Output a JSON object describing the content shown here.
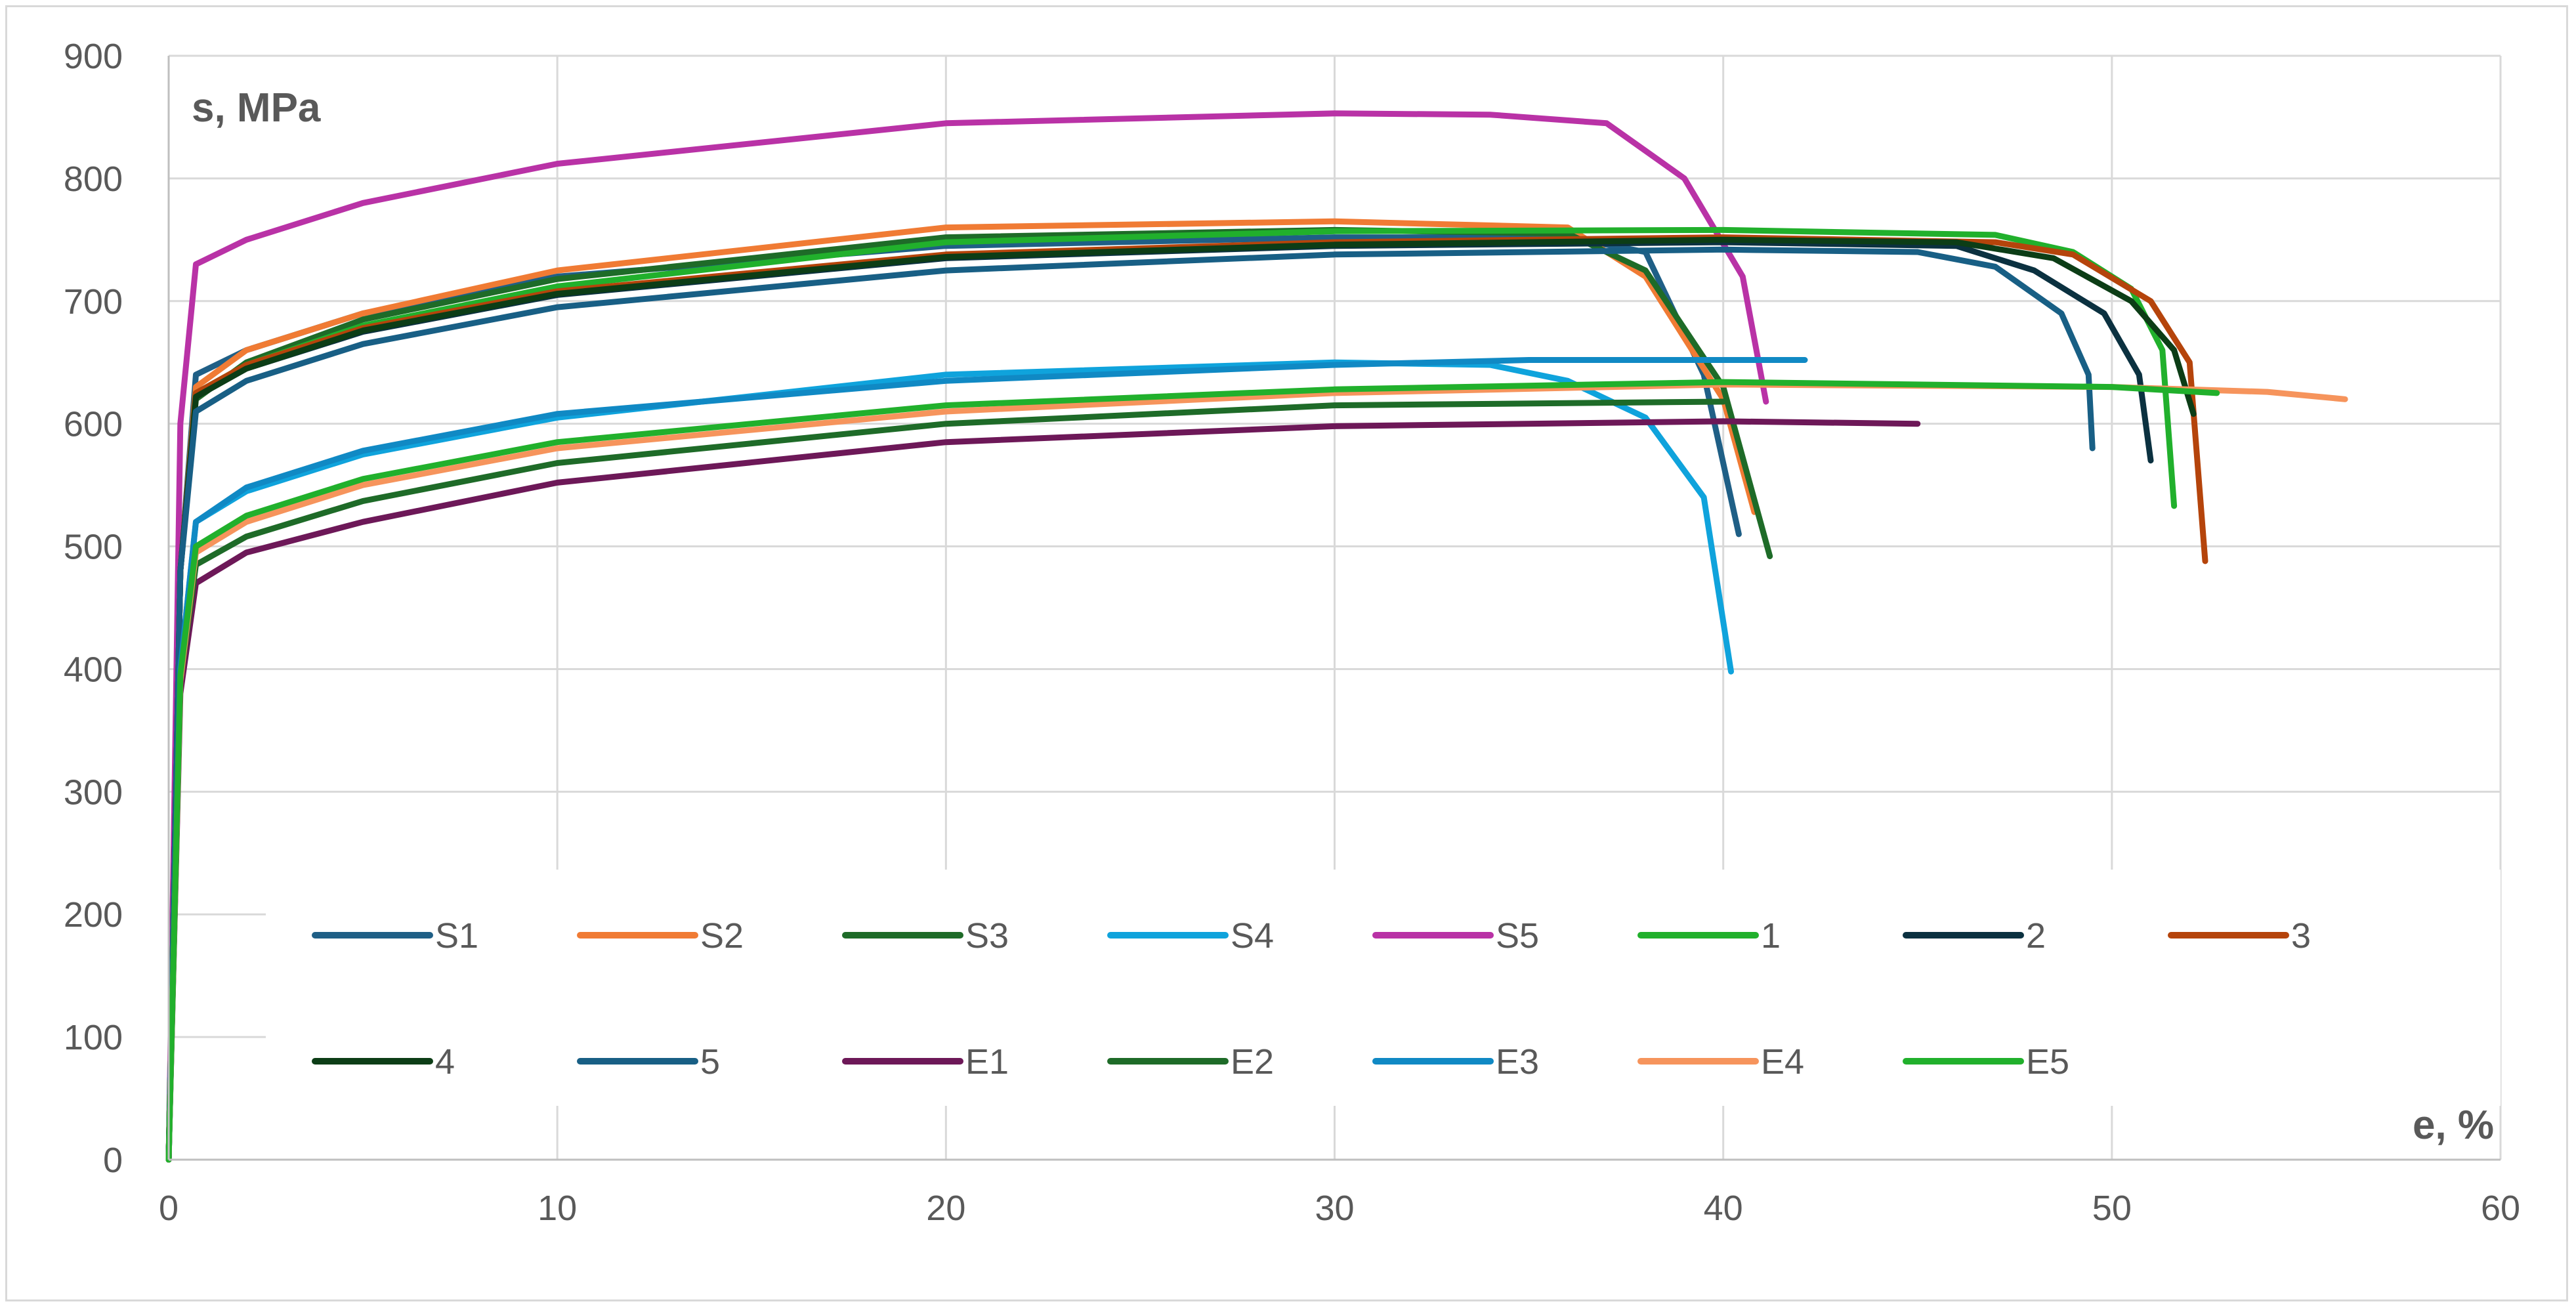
{
  "chart_data": {
    "type": "line",
    "ylabel": "s, MPa",
    "xlabel": "e, %",
    "xlim": [
      0,
      60
    ],
    "ylim": [
      0,
      900
    ],
    "xticks": [
      0,
      10,
      20,
      30,
      40,
      50,
      60
    ],
    "yticks": [
      0,
      100,
      200,
      300,
      400,
      500,
      600,
      700,
      800,
      900
    ],
    "grid": true,
    "legend_position": "inside-bottom",
    "series": [
      {
        "name": "S1",
        "color": "#1f5f86",
        "points": [
          [
            0,
            0
          ],
          [
            0.3,
            480
          ],
          [
            0.7,
            640
          ],
          [
            2,
            660
          ],
          [
            5,
            690
          ],
          [
            10,
            720
          ],
          [
            20,
            745
          ],
          [
            30,
            752
          ],
          [
            36,
            752
          ],
          [
            38,
            740
          ],
          [
            39.5,
            640
          ],
          [
            40.4,
            510
          ]
        ]
      },
      {
        "name": "S2",
        "color": "#f07b34",
        "points": [
          [
            0,
            0
          ],
          [
            0.3,
            480
          ],
          [
            0.7,
            630
          ],
          [
            2,
            660
          ],
          [
            5,
            690
          ],
          [
            10,
            725
          ],
          [
            20,
            760
          ],
          [
            30,
            765
          ],
          [
            36,
            760
          ],
          [
            38,
            720
          ],
          [
            40,
            620
          ],
          [
            40.8,
            528
          ]
        ]
      },
      {
        "name": "S3",
        "color": "#1e6b28",
        "points": [
          [
            0,
            0
          ],
          [
            0.3,
            480
          ],
          [
            0.7,
            620
          ],
          [
            2,
            650
          ],
          [
            5,
            685
          ],
          [
            10,
            718
          ],
          [
            20,
            752
          ],
          [
            30,
            758
          ],
          [
            36,
            755
          ],
          [
            38,
            725
          ],
          [
            40,
            630
          ],
          [
            41.2,
            492
          ]
        ]
      },
      {
        "name": "S4",
        "color": "#0fa3dc",
        "points": [
          [
            0,
            0
          ],
          [
            0.3,
            400
          ],
          [
            0.7,
            520
          ],
          [
            2,
            545
          ],
          [
            5,
            575
          ],
          [
            10,
            605
          ],
          [
            20,
            640
          ],
          [
            30,
            650
          ],
          [
            34,
            648
          ],
          [
            36,
            635
          ],
          [
            38,
            605
          ],
          [
            39.5,
            540
          ],
          [
            40.2,
            398
          ]
        ]
      },
      {
        "name": "S5",
        "color": "#b932a6",
        "points": [
          [
            0,
            0
          ],
          [
            0.3,
            600
          ],
          [
            0.7,
            730
          ],
          [
            2,
            750
          ],
          [
            5,
            780
          ],
          [
            10,
            812
          ],
          [
            20,
            845
          ],
          [
            30,
            853
          ],
          [
            34,
            852
          ],
          [
            37,
            845
          ],
          [
            39,
            800
          ],
          [
            40.5,
            720
          ],
          [
            41.1,
            618
          ]
        ]
      },
      {
        "name": "1",
        "color": "#21b02c",
        "points": [
          [
            0,
            0
          ],
          [
            0.3,
            480
          ],
          [
            0.7,
            625
          ],
          [
            2,
            648
          ],
          [
            5,
            680
          ],
          [
            10,
            712
          ],
          [
            20,
            748
          ],
          [
            30,
            757
          ],
          [
            40,
            758
          ],
          [
            47,
            754
          ],
          [
            49,
            740
          ],
          [
            50.5,
            710
          ],
          [
            51.3,
            660
          ],
          [
            51.6,
            533
          ]
        ]
      },
      {
        "name": "2",
        "color": "#0b3140",
        "points": [
          [
            0,
            0
          ],
          [
            0.3,
            480
          ],
          [
            0.7,
            622
          ],
          [
            2,
            645
          ],
          [
            5,
            675
          ],
          [
            10,
            705
          ],
          [
            20,
            735
          ],
          [
            30,
            745
          ],
          [
            40,
            748
          ],
          [
            46,
            745
          ],
          [
            48,
            725
          ],
          [
            49.8,
            690
          ],
          [
            50.7,
            640
          ],
          [
            51,
            570
          ]
        ]
      },
      {
        "name": "3",
        "color": "#b5440b",
        "points": [
          [
            0,
            0
          ],
          [
            0.3,
            480
          ],
          [
            0.7,
            625
          ],
          [
            2,
            648
          ],
          [
            5,
            678
          ],
          [
            10,
            708
          ],
          [
            20,
            738
          ],
          [
            30,
            748
          ],
          [
            40,
            752
          ],
          [
            47,
            748
          ],
          [
            49,
            738
          ],
          [
            51,
            700
          ],
          [
            52,
            650
          ],
          [
            52.4,
            488
          ]
        ]
      },
      {
        "name": "4",
        "color": "#0c3d16",
        "points": [
          [
            0,
            0
          ],
          [
            0.3,
            480
          ],
          [
            0.7,
            622
          ],
          [
            2,
            645
          ],
          [
            5,
            676
          ],
          [
            10,
            706
          ],
          [
            20,
            736
          ],
          [
            30,
            746
          ],
          [
            40,
            750
          ],
          [
            46,
            748
          ],
          [
            48.5,
            735
          ],
          [
            50.5,
            700
          ],
          [
            51.6,
            660
          ],
          [
            52.1,
            608
          ]
        ]
      },
      {
        "name": "5",
        "color": "#185f85",
        "points": [
          [
            0,
            0
          ],
          [
            0.3,
            480
          ],
          [
            0.7,
            610
          ],
          [
            2,
            635
          ],
          [
            5,
            665
          ],
          [
            10,
            695
          ],
          [
            20,
            725
          ],
          [
            30,
            738
          ],
          [
            40,
            742
          ],
          [
            45,
            740
          ],
          [
            47,
            728
          ],
          [
            48.7,
            690
          ],
          [
            49.4,
            640
          ],
          [
            49.5,
            580
          ]
        ]
      },
      {
        "name": "E1",
        "color": "#6d1858",
        "points": [
          [
            0,
            0
          ],
          [
            0.3,
            380
          ],
          [
            0.7,
            470
          ],
          [
            2,
            495
          ],
          [
            5,
            520
          ],
          [
            10,
            552
          ],
          [
            20,
            585
          ],
          [
            30,
            598
          ],
          [
            40,
            602
          ],
          [
            45,
            600
          ]
        ]
      },
      {
        "name": "E2",
        "color": "#1e6b28",
        "points": [
          [
            0,
            0
          ],
          [
            0.3,
            390
          ],
          [
            0.7,
            485
          ],
          [
            2,
            508
          ],
          [
            5,
            537
          ],
          [
            10,
            568
          ],
          [
            20,
            600
          ],
          [
            30,
            615
          ],
          [
            40,
            618
          ]
        ]
      },
      {
        "name": "E3",
        "color": "#1089c4",
        "points": [
          [
            0,
            0
          ],
          [
            0.3,
            400
          ],
          [
            0.7,
            520
          ],
          [
            2,
            548
          ],
          [
            5,
            578
          ],
          [
            10,
            608
          ],
          [
            20,
            635
          ],
          [
            30,
            648
          ],
          [
            35,
            652
          ],
          [
            40,
            652
          ],
          [
            42.1,
            652
          ]
        ]
      },
      {
        "name": "E4",
        "color": "#f6945c",
        "points": [
          [
            0,
            0
          ],
          [
            0.3,
            390
          ],
          [
            0.7,
            495
          ],
          [
            2,
            520
          ],
          [
            5,
            550
          ],
          [
            10,
            580
          ],
          [
            20,
            610
          ],
          [
            30,
            625
          ],
          [
            40,
            632
          ],
          [
            50,
            630
          ],
          [
            54,
            626
          ],
          [
            56,
            620
          ]
        ]
      },
      {
        "name": "E5",
        "color": "#21b02c",
        "points": [
          [
            0,
            0
          ],
          [
            0.3,
            395
          ],
          [
            0.7,
            500
          ],
          [
            2,
            525
          ],
          [
            5,
            555
          ],
          [
            10,
            585
          ],
          [
            20,
            615
          ],
          [
            30,
            628
          ],
          [
            40,
            634
          ],
          [
            50,
            630
          ],
          [
            52.7,
            625
          ]
        ]
      }
    ]
  }
}
